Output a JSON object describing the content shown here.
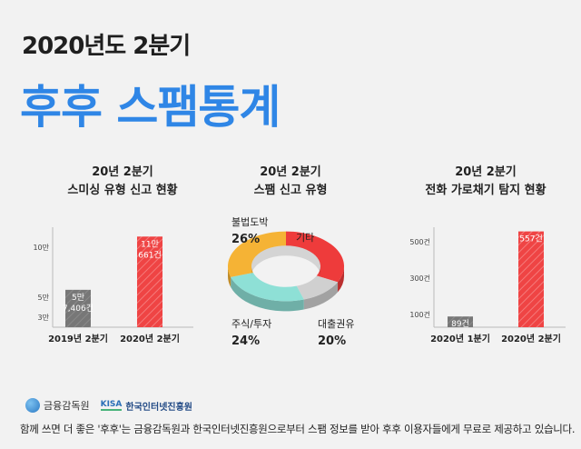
{
  "header": {
    "subtitle": "2020년도 2분기",
    "title": "후후 스팸통계"
  },
  "panels": {
    "smishing": {
      "title_line1": "20년 2분기",
      "title_line2": "스미싱 유형 신고 현황"
    },
    "spam": {
      "title_line1": "20년 2분기",
      "title_line2": "스팸 신고 유형"
    },
    "phone": {
      "title_line1": "20년 2분기",
      "title_line2": "전화 가로채기 탐지 현황"
    }
  },
  "chart_data": [
    {
      "type": "bar",
      "categories": [
        "2019년 2분기",
        "2020년 2분기"
      ],
      "values": [
        57406,
        110661
      ],
      "data_labels": [
        [
          "5만",
          "7,406건"
        ],
        [
          "11만",
          "661건"
        ]
      ],
      "y_ticks": [
        "10만",
        "5만",
        "3만"
      ],
      "y_tick_values": [
        100000,
        50000,
        30000
      ],
      "ylim": [
        20000,
        120000
      ],
      "colors": [
        "#7a7a7a",
        "#ef4444"
      ]
    },
    {
      "type": "pie",
      "labels": [
        "불법도박",
        "기타",
        "대출권유",
        "주식/투자"
      ],
      "values": [
        26,
        10,
        20,
        24
      ],
      "value_labels": [
        "26%",
        "",
        "20%",
        "24%"
      ],
      "colors": [
        "#ee3b3b",
        "#d0d0d0",
        "#8ee0d6",
        "#f5b335"
      ]
    },
    {
      "type": "bar",
      "categories": [
        "2020년 1분기",
        "2020년 2분기"
      ],
      "values": [
        89,
        557
      ],
      "data_labels": [
        "89건",
        "557건"
      ],
      "y_ticks": [
        "500건",
        "300건",
        "100건"
      ],
      "y_tick_values": [
        500,
        300,
        100
      ],
      "ylim": [
        30,
        580
      ],
      "colors": [
        "#7a7a7a",
        "#ef4444"
      ]
    }
  ],
  "logos": {
    "fss": "금융감독원",
    "kisa_mark": "KISA",
    "kisa": "한국인터넷진흥원"
  },
  "footer": "함께 쓰면 더 좋은 '후후'는 금융감독원과 한국인터넷진흥원으로부터 스팸 정보를 받아 후후 이용자들에게 무료로 제공하고 있습니다."
}
